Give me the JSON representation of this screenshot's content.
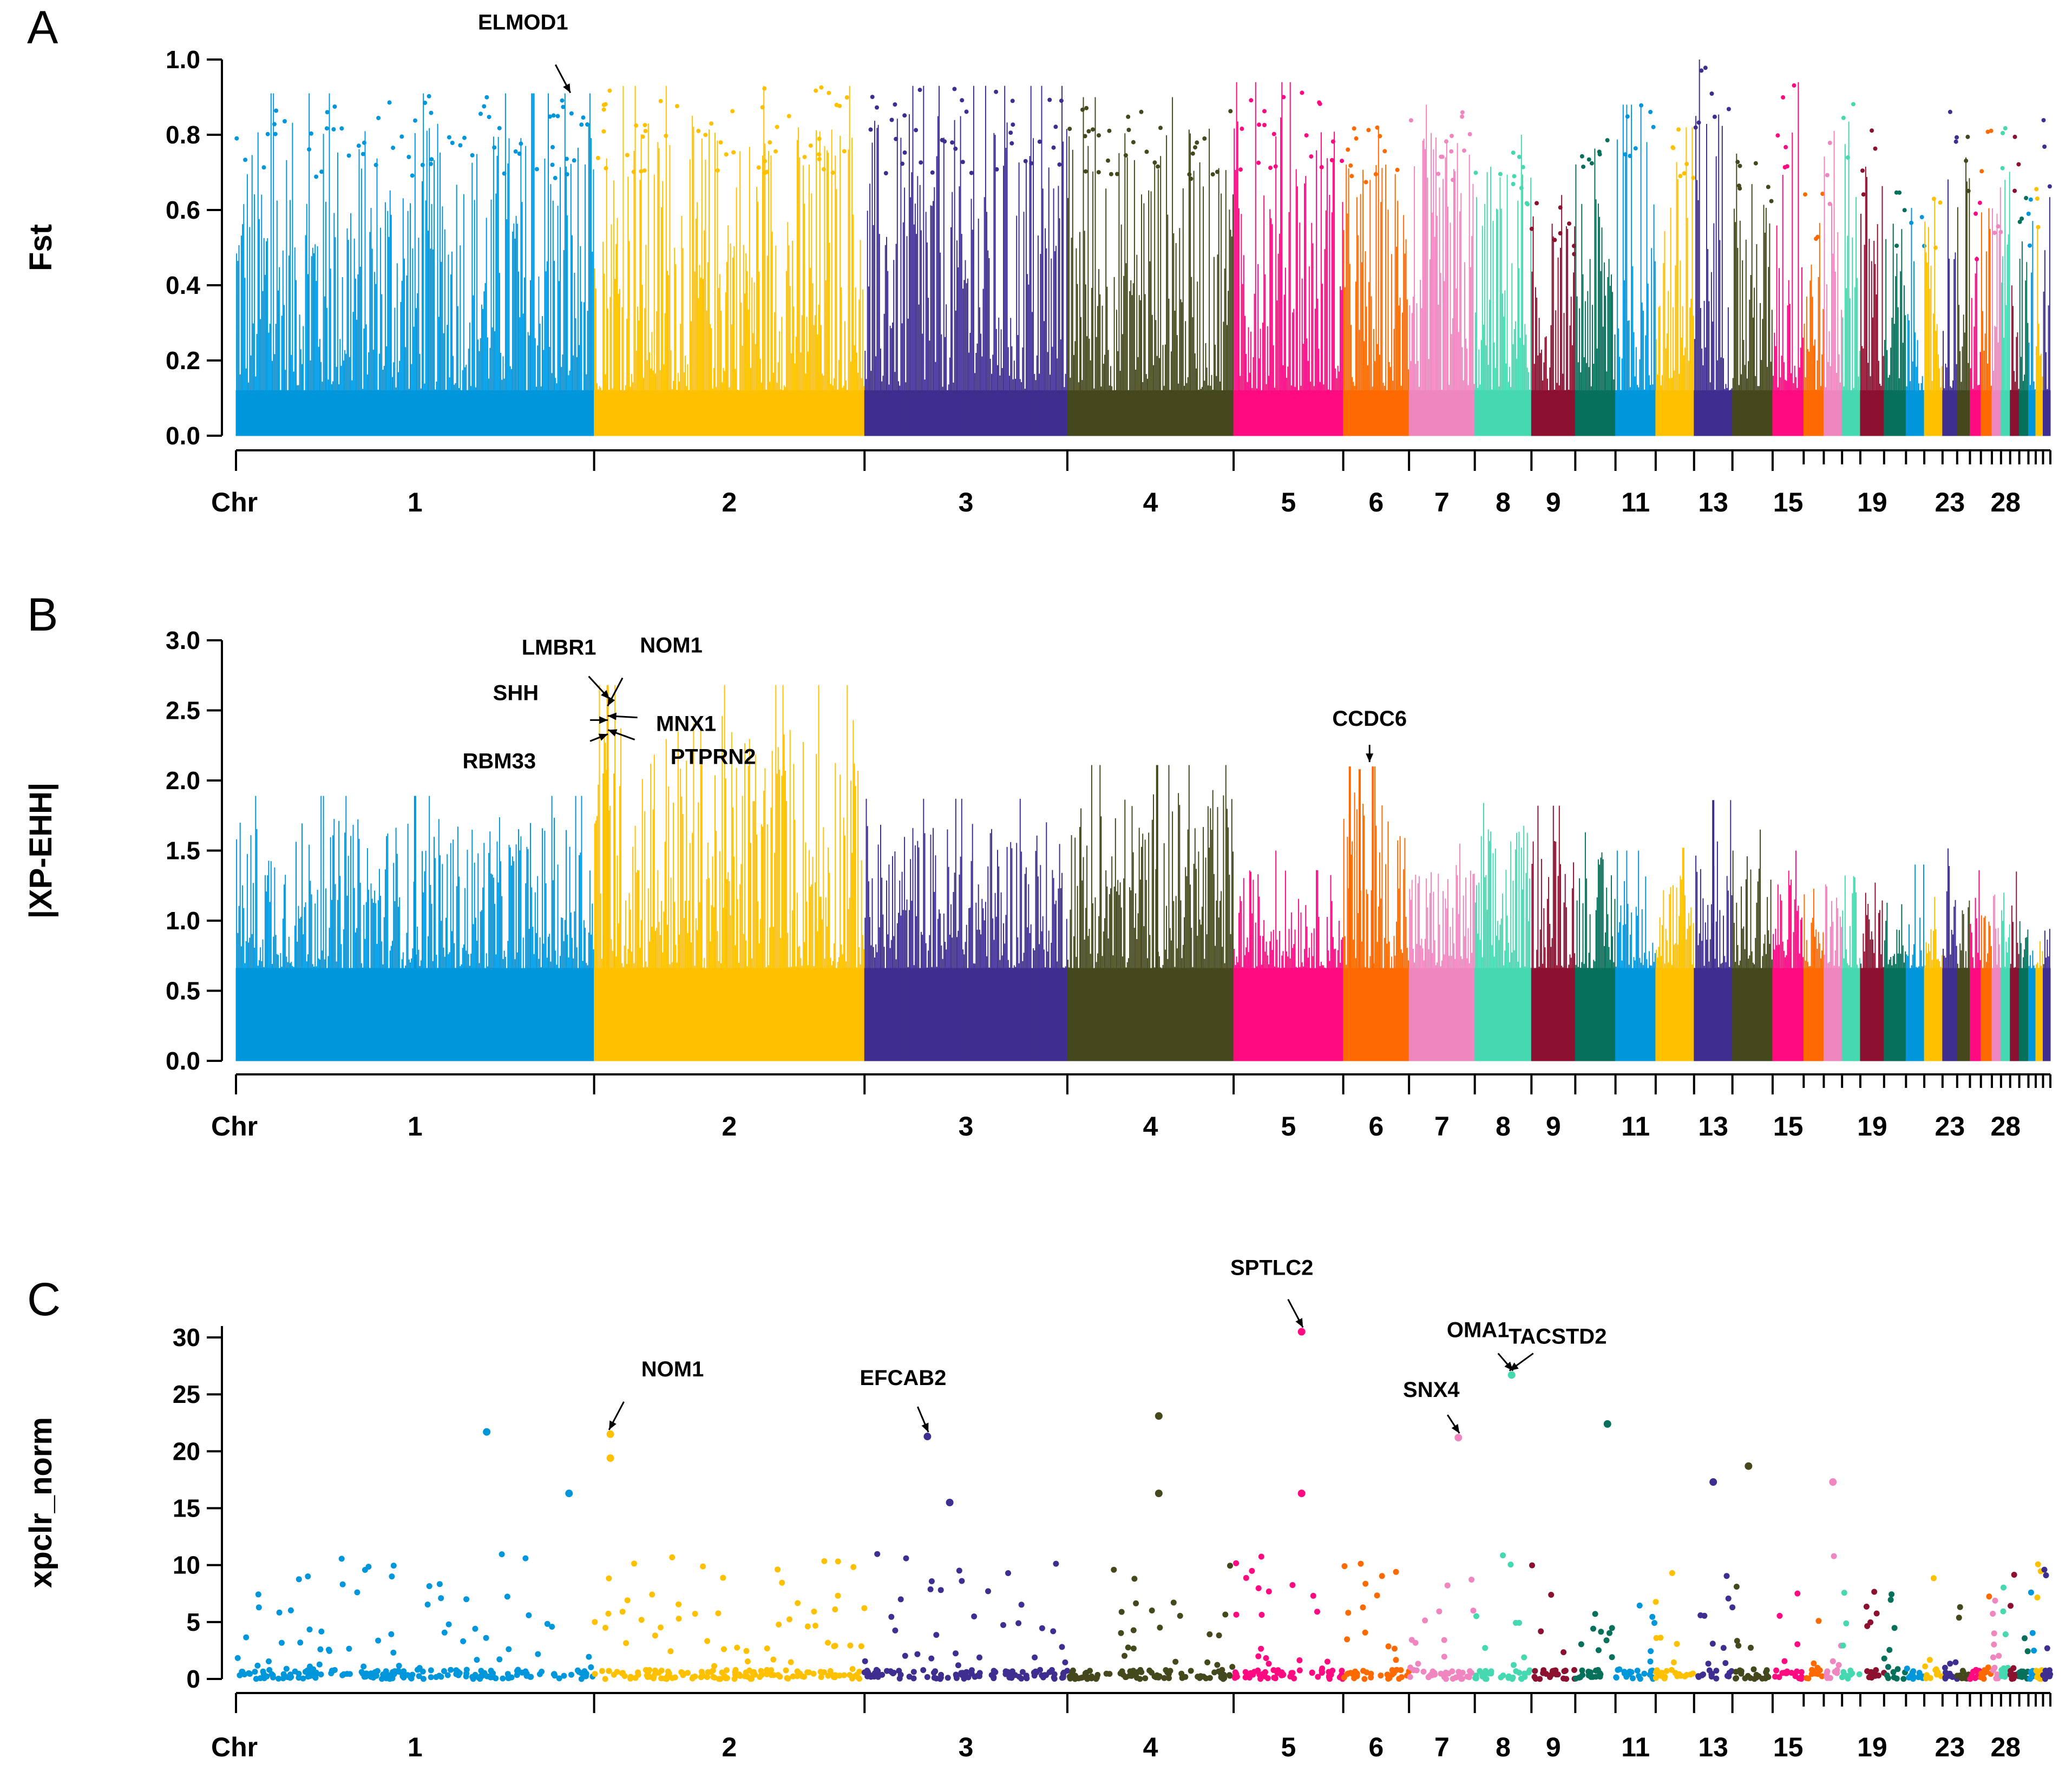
{
  "chr_tick_label": "Chr",
  "chromosomes": {
    "count": 33,
    "relative_lengths": [
      196,
      148,
      111,
      91,
      60,
      36,
      36,
      31,
      24,
      22,
      22,
      21,
      21,
      22,
      17,
      11,
      10,
      10,
      13,
      12,
      10,
      10,
      8,
      7,
      6,
      6,
      5,
      5,
      5,
      5,
      4,
      4,
      4
    ],
    "colors": [
      "#0096dc",
      "#ffc000",
      "#3f2e8f",
      "#44481c",
      "#ff0a80",
      "#ff6a00",
      "#ef86c0",
      "#46d8b0",
      "#8c1030",
      "#06705a",
      "#0096dc",
      "#ffc000",
      "#3f2e8f",
      "#44481c",
      "#ff0a80",
      "#ff6a00",
      "#ef86c0",
      "#46d8b0",
      "#8c1030",
      "#06705a",
      "#0096dc",
      "#ffc000",
      "#3f2e8f",
      "#44481c",
      "#ff0a80",
      "#ff6a00",
      "#ef86c0",
      "#46d8b0",
      "#8c1030",
      "#06705a",
      "#0096dc",
      "#ffc000",
      "#3f2e8f"
    ],
    "tick_labels": [
      {
        "chr": 1,
        "label": "1"
      },
      {
        "chr": 2,
        "label": "2"
      },
      {
        "chr": 3,
        "label": "3"
      },
      {
        "chr": 4,
        "label": "4"
      },
      {
        "chr": 5,
        "label": "5"
      },
      {
        "chr": 6,
        "label": "6"
      },
      {
        "chr": 7,
        "label": "7"
      },
      {
        "chr": 8,
        "label": "8"
      },
      {
        "chr": 9,
        "label": "9"
      },
      {
        "chr": 11,
        "label": "11"
      },
      {
        "chr": 13,
        "label": "13"
      },
      {
        "chr": 15,
        "label": "15"
      },
      {
        "chr": 19,
        "label": "19"
      },
      {
        "chr": 23,
        "label": "23"
      },
      {
        "chr": 28,
        "label": "28"
      }
    ]
  },
  "chart_data": [
    {
      "panel": "A",
      "type": "scatter",
      "subtype": "manhattan",
      "ylabel": "Fst",
      "xlabel": "Chr",
      "ylim": [
        0,
        1.0
      ],
      "yticks": [
        "0.0",
        "0.2",
        "0.4",
        "0.6",
        "0.8",
        "1.0"
      ],
      "density": "dense",
      "chr_max_values": [
        0.91,
        0.93,
        0.93,
        0.9,
        0.94,
        0.82,
        0.88,
        0.8,
        0.64,
        0.83,
        0.88,
        0.82,
        1.0,
        0.75,
        0.94,
        0.66,
        0.81,
        0.96,
        0.82,
        0.65,
        0.66,
        0.63,
        0.87,
        0.85,
        0.62,
        0.85,
        0.66,
        0.88,
        0.8,
        0.64,
        0.66,
        0.66,
        0.87
      ],
      "annotations": [
        {
          "label": "ELMOD1",
          "chr": 1,
          "pos": 0.93,
          "value": 0.9
        }
      ]
    },
    {
      "panel": "B",
      "type": "bar",
      "subtype": "manhattan",
      "ylabel": "|XP-EHH|",
      "xlabel": "Chr",
      "ylim": [
        0,
        3.0
      ],
      "yticks": [
        "0.0",
        "0.5",
        "1.0",
        "1.5",
        "2.0",
        "2.5",
        "3.0"
      ],
      "density": "dense",
      "chr_max_values": [
        1.89,
        2.68,
        1.87,
        2.11,
        1.5,
        2.1,
        1.55,
        1.84,
        1.82,
        1.63,
        1.5,
        1.52,
        1.86,
        1.65,
        1.5,
        1.43,
        1.5,
        1.45,
        1.4,
        1.3,
        1.4,
        1.35,
        1.73,
        1.3,
        1.36,
        1.2,
        1.35,
        1.2,
        1.35,
        1.15,
        0.9,
        1.1,
        1.05
      ],
      "annotations": [
        {
          "label": "LMBR1",
          "chr": 2,
          "pos": 0.05,
          "value": 2.55
        },
        {
          "label": "NOM1",
          "chr": 2,
          "pos": 0.055,
          "value": 2.5
        },
        {
          "label": "SHH",
          "chr": 2,
          "pos": 0.045,
          "value": 2.4
        },
        {
          "label": "MNX1",
          "chr": 2,
          "pos": 0.06,
          "value": 2.43
        },
        {
          "label": "RBM33",
          "chr": 2,
          "pos": 0.045,
          "value": 2.3
        },
        {
          "label": "PTPRN2",
          "chr": 2,
          "pos": 0.06,
          "value": 2.33
        },
        {
          "label": "CCDC6",
          "chr": 6,
          "pos": 0.4,
          "value": 2.1
        }
      ]
    },
    {
      "panel": "C",
      "type": "scatter",
      "subtype": "manhattan",
      "ylabel": "xpclr_norm",
      "xlabel": "Chr",
      "ylim": [
        0,
        31
      ],
      "yticks": [
        "0",
        "5",
        "10",
        "15",
        "20",
        "25",
        "30"
      ],
      "density": "sparse",
      "highlight_points": [
        {
          "chr": 1,
          "pos": 0.7,
          "value": 21.7
        },
        {
          "chr": 1,
          "pos": 0.93,
          "value": 16.3
        },
        {
          "chr": 2,
          "pos": 0.06,
          "value": 21.5
        },
        {
          "chr": 2,
          "pos": 0.06,
          "value": 19.4
        },
        {
          "chr": 3,
          "pos": 0.31,
          "value": 21.3
        },
        {
          "chr": 3,
          "pos": 0.42,
          "value": 15.5
        },
        {
          "chr": 4,
          "pos": 0.55,
          "value": 23.1
        },
        {
          "chr": 4,
          "pos": 0.55,
          "value": 16.3
        },
        {
          "chr": 5,
          "pos": 0.62,
          "value": 30.5
        },
        {
          "chr": 5,
          "pos": 0.62,
          "value": 16.3
        },
        {
          "chr": 7,
          "pos": 0.75,
          "value": 21.2
        },
        {
          "chr": 8,
          "pos": 0.65,
          "value": 26.7
        },
        {
          "chr": 10,
          "pos": 0.8,
          "value": 22.4
        },
        {
          "chr": 13,
          "pos": 0.5,
          "value": 17.3
        },
        {
          "chr": 14,
          "pos": 0.4,
          "value": 18.7
        },
        {
          "chr": 17,
          "pos": 0.5,
          "value": 17.3
        }
      ],
      "annotations": [
        {
          "label": "NOM1",
          "chr": 2,
          "pos": 0.06,
          "value": 21.5
        },
        {
          "label": "EFCAB2",
          "chr": 3,
          "pos": 0.31,
          "value": 21.3
        },
        {
          "label": "SPTLC2",
          "chr": 5,
          "pos": 0.62,
          "value": 30.5
        },
        {
          "label": "OMA1",
          "chr": 8,
          "pos": 0.65,
          "value": 26.7
        },
        {
          "label": "TACSTD2",
          "chr": 8,
          "pos": 0.65,
          "value": 26.7
        },
        {
          "label": "SNX4",
          "chr": 7,
          "pos": 0.75,
          "value": 21.2
        }
      ]
    }
  ]
}
